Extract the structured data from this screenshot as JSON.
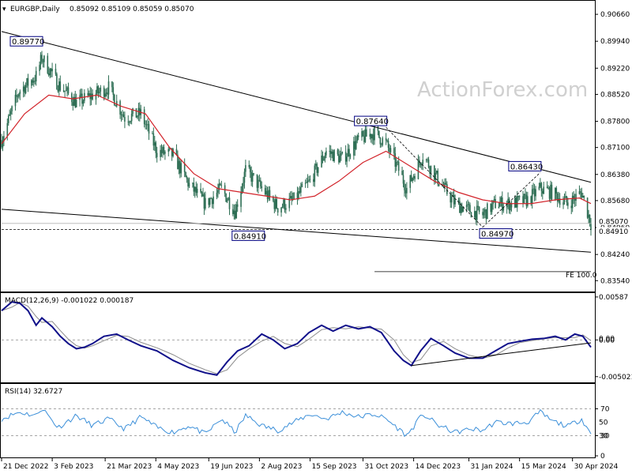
{
  "chart_data": {
    "type": "candlestick",
    "header": {
      "symbol": "EURGBP,Daily",
      "ohlc": "0.85092 0.85109 0.85059 0.85070"
    },
    "watermark": "ActionForex.com",
    "price": {
      "ylim": [
        0.8325,
        0.91
      ],
      "yticks": [
        "0.90660",
        "0.89940",
        "0.89220",
        "0.88520",
        "0.87800",
        "0.87100",
        "0.86380",
        "0.85680",
        "0.84960",
        "0.84240",
        "0.83540"
      ],
      "ytick_values": [
        0.9066,
        0.8994,
        0.8922,
        0.8852,
        0.878,
        0.871,
        0.8638,
        0.8568,
        0.8496,
        0.8424,
        0.8354
      ],
      "current_price": "0.85070",
      "support_level": "0.84910",
      "annotations": [
        {
          "label": "0.89770",
          "price": 0.8977,
          "date": "2023-01-25"
        },
        {
          "label": "0.87640",
          "price": 0.8764,
          "date": "2023-11-20"
        },
        {
          "label": "0.86430",
          "price": 0.8643,
          "date": "2024-04-02"
        },
        {
          "label": "0.84910",
          "price": 0.8491,
          "date": "2023-07-12"
        },
        {
          "label": "0.84970",
          "price": 0.8497,
          "date": "2024-02-12"
        }
      ],
      "fe_label": "FE 100.0",
      "fe_level": 0.8378,
      "trendlines": [
        {
          "from": [
            "2022-12-21",
            0.902
          ],
          "to": [
            "2024-05-16",
            0.8617
          ]
        },
        {
          "from": [
            "2022-12-21",
            0.8545
          ],
          "to": [
            "2024-05-16",
            0.843
          ]
        }
      ],
      "projection_lines": [
        {
          "from": [
            "2023-11-20",
            0.8764
          ],
          "to": [
            "2024-02-12",
            0.8497
          ]
        },
        {
          "from": [
            "2024-02-12",
            0.8497
          ],
          "to": [
            "2024-04-02",
            0.8643
          ]
        }
      ]
    },
    "ma": {
      "anchors": [
        [
          "2022-12-21",
          0.872
        ],
        [
          "2023-01-10",
          0.88
        ],
        [
          "2023-01-31",
          0.885
        ],
        [
          "2023-02-21",
          0.884
        ],
        [
          "2023-03-14",
          0.885
        ],
        [
          "2023-04-04",
          0.882
        ],
        [
          "2023-04-25",
          0.88
        ],
        [
          "2023-05-16",
          0.871
        ],
        [
          "2023-06-06",
          0.864
        ],
        [
          "2023-06-27",
          0.86
        ],
        [
          "2023-07-18",
          0.859
        ],
        [
          "2023-08-08",
          0.858
        ],
        [
          "2023-08-29",
          0.857
        ],
        [
          "2023-09-19",
          0.858
        ],
        [
          "2023-10-10",
          0.862
        ],
        [
          "2023-10-31",
          0.867
        ],
        [
          "2023-11-20",
          0.87
        ],
        [
          "2023-12-11",
          0.866
        ],
        [
          "2024-01-01",
          0.862
        ],
        [
          "2024-01-22",
          0.859
        ],
        [
          "2024-02-12",
          0.857
        ],
        [
          "2024-03-04",
          0.856
        ],
        [
          "2024-03-25",
          0.856
        ],
        [
          "2024-04-15",
          0.857
        ],
        [
          "2024-05-06",
          0.8575
        ],
        [
          "2024-05-16",
          0.856
        ]
      ]
    },
    "close_anchors": [
      [
        "2022-12-21",
        0.873
      ],
      [
        "2023-01-05",
        0.886
      ],
      [
        "2023-01-20",
        0.89
      ],
      [
        "2023-01-25",
        0.895
      ],
      [
        "2023-02-08",
        0.888
      ],
      [
        "2023-02-24",
        0.883
      ],
      [
        "2023-03-10",
        0.885
      ],
      [
        "2023-03-24",
        0.887
      ],
      [
        "2023-04-07",
        0.879
      ],
      [
        "2023-04-21",
        0.88
      ],
      [
        "2023-05-05",
        0.87
      ],
      [
        "2023-05-19",
        0.869
      ],
      [
        "2023-06-02",
        0.861
      ],
      [
        "2023-06-16",
        0.856
      ],
      [
        "2023-06-30",
        0.86
      ],
      [
        "2023-07-12",
        0.854
      ],
      [
        "2023-07-21",
        0.865
      ],
      [
        "2023-08-04",
        0.86
      ],
      [
        "2023-08-18",
        0.855
      ],
      [
        "2023-09-01",
        0.857
      ],
      [
        "2023-09-15",
        0.862
      ],
      [
        "2023-09-29",
        0.87
      ],
      [
        "2023-10-13",
        0.868
      ],
      [
        "2023-10-27",
        0.873
      ],
      [
        "2023-11-10",
        0.875
      ],
      [
        "2023-11-20",
        0.872
      ],
      [
        "2023-12-01",
        0.865
      ],
      [
        "2023-12-08",
        0.86
      ],
      [
        "2023-12-22",
        0.869
      ],
      [
        "2024-01-05",
        0.862
      ],
      [
        "2024-01-19",
        0.856
      ],
      [
        "2024-02-02",
        0.854
      ],
      [
        "2024-02-12",
        0.853
      ],
      [
        "2024-02-23",
        0.856
      ],
      [
        "2024-03-08",
        0.856
      ],
      [
        "2024-03-22",
        0.857
      ],
      [
        "2024-04-02",
        0.86
      ],
      [
        "2024-04-12",
        0.859
      ],
      [
        "2024-04-26",
        0.856
      ],
      [
        "2024-05-08",
        0.859
      ],
      [
        "2024-05-16",
        0.8507
      ]
    ],
    "macd": {
      "label": "MACD(12,26,9) -0.001022 0.000187",
      "ylim": [
        -0.0058,
        0.0064
      ],
      "yticks": [
        "0.00587",
        "0.00",
        "-0.005021"
      ],
      "ytick_values": [
        0.00587,
        0.0,
        -0.005021
      ],
      "current_marks": [
        "0.00",
        "0.00"
      ],
      "anchors": [
        [
          "2022-12-21",
          0.004
        ],
        [
          "2022-12-30",
          0.0052
        ],
        [
          "2023-01-06",
          0.005
        ],
        [
          "2023-01-13",
          0.004
        ],
        [
          "2023-01-20",
          0.002
        ],
        [
          "2023-01-25",
          0.003
        ],
        [
          "2023-02-03",
          0.0018
        ],
        [
          "2023-02-10",
          0.0005
        ],
        [
          "2023-02-17",
          -0.0005
        ],
        [
          "2023-02-24",
          -0.0012
        ],
        [
          "2023-03-03",
          -0.001
        ],
        [
          "2023-03-10",
          -0.0005
        ],
        [
          "2023-03-20",
          0.0005
        ],
        [
          "2023-03-31",
          0.0008
        ],
        [
          "2023-04-10",
          0.0
        ],
        [
          "2023-04-21",
          -0.0008
        ],
        [
          "2023-05-05",
          -0.0015
        ],
        [
          "2023-05-19",
          -0.0028
        ],
        [
          "2023-06-02",
          -0.0038
        ],
        [
          "2023-06-16",
          -0.0045
        ],
        [
          "2023-06-26",
          -0.0048
        ],
        [
          "2023-07-05",
          -0.003
        ],
        [
          "2023-07-14",
          -0.0015
        ],
        [
          "2023-07-24",
          -0.0008
        ],
        [
          "2023-08-04",
          0.0008
        ],
        [
          "2023-08-14",
          0.0
        ],
        [
          "2023-08-24",
          -0.0012
        ],
        [
          "2023-09-04",
          -0.0005
        ],
        [
          "2023-09-14",
          0.001
        ],
        [
          "2023-09-25",
          0.002
        ],
        [
          "2023-10-05",
          0.0012
        ],
        [
          "2023-10-16",
          0.002
        ],
        [
          "2023-10-27",
          0.0015
        ],
        [
          "2023-11-06",
          0.0018
        ],
        [
          "2023-11-16",
          0.001
        ],
        [
          "2023-11-27",
          -0.0015
        ],
        [
          "2023-12-05",
          -0.0028
        ],
        [
          "2023-12-12",
          -0.0035
        ],
        [
          "2023-12-20",
          -0.0015
        ],
        [
          "2023-12-29",
          0.0002
        ],
        [
          "2024-01-09",
          -0.0008
        ],
        [
          "2024-01-19",
          -0.0018
        ],
        [
          "2024-01-31",
          -0.0025
        ],
        [
          "2024-02-12",
          -0.0025
        ],
        [
          "2024-02-23",
          -0.0015
        ],
        [
          "2024-03-05",
          -0.0005
        ],
        [
          "2024-03-15",
          -0.0002
        ],
        [
          "2024-03-26",
          0.0001
        ],
        [
          "2024-04-05",
          0.0002
        ],
        [
          "2024-04-15",
          0.0005
        ],
        [
          "2024-04-24",
          0.0
        ],
        [
          "2024-05-02",
          0.0008
        ],
        [
          "2024-05-09",
          0.0005
        ],
        [
          "2024-05-16",
          -0.001
        ]
      ],
      "trendline": {
        "from": [
          "2023-12-12",
          -0.0035
        ],
        "to": [
          "2024-05-16",
          -0.0004
        ]
      }
    },
    "rsi": {
      "label": "RSI(14) 32.6727",
      "ylim": [
        0,
        100
      ],
      "yticks": [
        "70",
        "50",
        "30",
        "0"
      ],
      "ytick_values": [
        70,
        50,
        30,
        0
      ],
      "current_marks": [
        "50",
        "30"
      ],
      "anchors": [
        [
          "2022-12-21",
          55
        ],
        [
          "2023-01-05",
          65
        ],
        [
          "2023-01-20",
          60
        ],
        [
          "2023-01-25",
          72
        ],
        [
          "2023-02-08",
          42
        ],
        [
          "2023-02-24",
          60
        ],
        [
          "2023-03-10",
          45
        ],
        [
          "2023-03-24",
          55
        ],
        [
          "2023-04-07",
          40
        ],
        [
          "2023-04-21",
          58
        ],
        [
          "2023-05-05",
          42
        ],
        [
          "2023-05-19",
          35
        ],
        [
          "2023-06-02",
          45
        ],
        [
          "2023-06-16",
          32
        ],
        [
          "2023-06-30",
          55
        ],
        [
          "2023-07-12",
          35
        ],
        [
          "2023-07-21",
          60
        ],
        [
          "2023-08-04",
          45
        ],
        [
          "2023-08-18",
          38
        ],
        [
          "2023-09-01",
          50
        ],
        [
          "2023-09-15",
          62
        ],
        [
          "2023-09-29",
          55
        ],
        [
          "2023-10-13",
          65
        ],
        [
          "2023-10-27",
          58
        ],
        [
          "2023-11-10",
          62
        ],
        [
          "2023-11-20",
          55
        ],
        [
          "2023-12-01",
          40
        ],
        [
          "2023-12-08",
          30
        ],
        [
          "2023-12-22",
          62
        ],
        [
          "2024-01-05",
          45
        ],
        [
          "2024-01-19",
          35
        ],
        [
          "2024-02-02",
          40
        ],
        [
          "2024-02-12",
          38
        ],
        [
          "2024-02-23",
          50
        ],
        [
          "2024-03-08",
          48
        ],
        [
          "2024-03-22",
          50
        ],
        [
          "2024-04-02",
          65
        ],
        [
          "2024-04-12",
          52
        ],
        [
          "2024-04-26",
          44
        ],
        [
          "2024-05-08",
          55
        ],
        [
          "2024-05-16",
          32.67
        ]
      ]
    },
    "xaxis": {
      "date_range": [
        "2022-12-21",
        "2024-05-16"
      ],
      "labels": [
        "21 Dec 2022",
        "3 Feb 2023",
        "21 Mar 2023",
        "4 May 2023",
        "19 Jun 2023",
        "2 Aug 2023",
        "15 Sep 2023",
        "31 Oct 2023",
        "14 Dec 2023",
        "31 Jan 2024",
        "15 Mar 2024",
        "30 Apr 2024"
      ],
      "label_dates": [
        "2022-12-21",
        "2023-02-03",
        "2023-03-21",
        "2023-05-04",
        "2023-06-19",
        "2023-08-02",
        "2023-09-15",
        "2023-10-31",
        "2023-12-14",
        "2024-01-31",
        "2024-03-15",
        "2024-04-30"
      ]
    },
    "colors": {
      "candle": "#2f6f55",
      "ma": "#d2232a",
      "macd_main": "#10108a",
      "macd_signal": "#8c8c8c",
      "rsi": "#3b8fd9",
      "trend": "#000000",
      "label_border": "#000080"
    }
  }
}
